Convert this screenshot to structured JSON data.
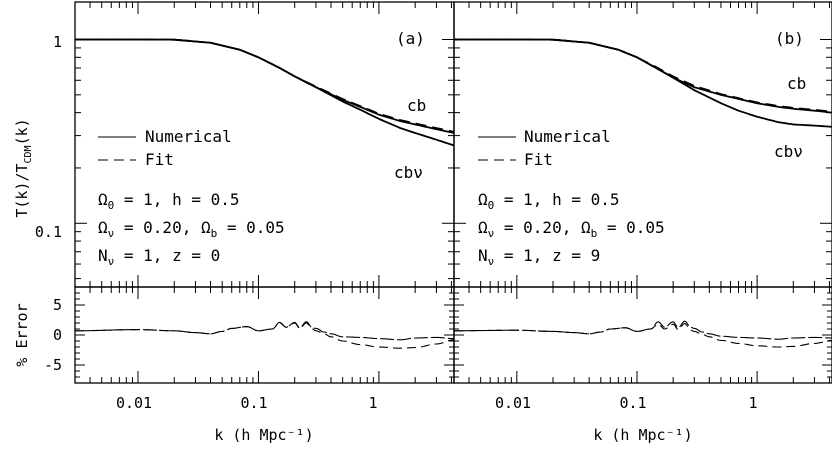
{
  "chart_data": [
    {
      "type": "line",
      "panel_label": "(a)",
      "xlabel": "k (h Mpc⁻¹)",
      "ylabel": "T(k)/T_CDM(k)",
      "y_axis_label_main": "T(k)/T",
      "y_axis_label_sub": "CDM",
      "y_axis_label_tail": "(k)",
      "xscale": "log",
      "yscale": "log",
      "xlim": [
        0.003,
        4.2
      ],
      "ylim": [
        0.045,
        1.6
      ],
      "xticklabels": [
        "0.01",
        "0.1",
        "1"
      ],
      "yticklabels": [
        "0.1",
        "1"
      ],
      "legend": {
        "placement": "center-left",
        "entries": [
          "Numerical",
          "Fit"
        ]
      },
      "curve_labels": [
        "cb",
        "cbν"
      ],
      "params": {
        "line1": {
          "sym": "Ω",
          "sub": "0",
          "text": " = 1, h = 0.5"
        },
        "line2": {
          "sym": "Ω",
          "sub": "ν",
          "mid": " = 0.20, ",
          "sym2": "Ω",
          "sub2": "b",
          "text": " = 0.05"
        },
        "line3": {
          "sym": "N",
          "sub": "ν",
          "text": " = 1, z = 0"
        }
      },
      "series": [
        {
          "name": "Numerical",
          "curve": "cb",
          "x": [
            0.003,
            0.01,
            0.02,
            0.04,
            0.07,
            0.1,
            0.15,
            0.2,
            0.3,
            0.5,
            0.7,
            1.0,
            1.5,
            2.0,
            3.0,
            4.2
          ],
          "y": [
            1.0,
            1.0,
            0.998,
            0.96,
            0.88,
            0.8,
            0.7,
            0.63,
            0.55,
            0.47,
            0.43,
            0.39,
            0.36,
            0.345,
            0.325,
            0.31
          ]
        },
        {
          "name": "Fit",
          "curve": "cb",
          "x": [
            0.003,
            0.01,
            0.02,
            0.04,
            0.07,
            0.1,
            0.15,
            0.2,
            0.3,
            0.5,
            0.7,
            1.0,
            1.5,
            2.0,
            3.0,
            4.2
          ],
          "y": [
            1.0,
            1.0,
            0.998,
            0.96,
            0.88,
            0.8,
            0.7,
            0.63,
            0.555,
            0.475,
            0.435,
            0.395,
            0.365,
            0.35,
            0.33,
            0.315
          ]
        },
        {
          "name": "Numerical",
          "curve": "cbν",
          "x": [
            0.003,
            0.01,
            0.02,
            0.04,
            0.07,
            0.1,
            0.15,
            0.2,
            0.3,
            0.5,
            0.7,
            1.0,
            1.5,
            2.0,
            3.0,
            4.2
          ],
          "y": [
            1.0,
            1.0,
            0.998,
            0.96,
            0.88,
            0.8,
            0.7,
            0.63,
            0.55,
            0.46,
            0.415,
            0.37,
            0.33,
            0.31,
            0.285,
            0.265
          ]
        }
      ],
      "error": {
        "ylabel": "% Error",
        "ylim": [
          -8,
          8
        ],
        "yticklabels": [
          "-5",
          "0",
          "5"
        ],
        "series": [
          {
            "name": "cb",
            "x": [
              0.003,
              0.01,
              0.02,
              0.03,
              0.04,
              0.05,
              0.06,
              0.08,
              0.1,
              0.13,
              0.15,
              0.17,
              0.2,
              0.22,
              0.25,
              0.28,
              0.3,
              0.35,
              0.4,
              0.5,
              0.7,
              1.0,
              1.5,
              2.0,
              3.0,
              4.2
            ],
            "y": [
              0.7,
              0.9,
              0.7,
              0.4,
              0.2,
              0.6,
              1.1,
              1.4,
              0.7,
              1.0,
              2.1,
              1.3,
              2.1,
              1.2,
              2.2,
              1.2,
              1.1,
              0.5,
              0.2,
              -0.3,
              -0.4,
              -0.6,
              -0.8,
              -0.5,
              -0.4,
              -0.6
            ]
          },
          {
            "name": "cbν",
            "x": [
              0.003,
              0.01,
              0.02,
              0.03,
              0.04,
              0.05,
              0.06,
              0.08,
              0.1,
              0.13,
              0.15,
              0.17,
              0.2,
              0.22,
              0.25,
              0.28,
              0.3,
              0.35,
              0.4,
              0.5,
              0.7,
              1.0,
              1.5,
              2.0,
              3.0,
              4.2
            ],
            "y": [
              0.7,
              0.9,
              0.7,
              0.4,
              0.2,
              0.6,
              1.1,
              1.4,
              0.7,
              1.0,
              2.0,
              1.3,
              2.0,
              1.1,
              2.0,
              1.0,
              0.7,
              0.2,
              -0.3,
              -1.0,
              -1.6,
              -2.0,
              -2.2,
              -2.1,
              -1.5,
              -0.8
            ]
          }
        ]
      }
    },
    {
      "type": "line",
      "panel_label": "(b)",
      "xlabel": "k (h Mpc⁻¹)",
      "xscale": "log",
      "yscale": "log",
      "xlim": [
        0.003,
        4.2
      ],
      "ylim": [
        0.045,
        1.6
      ],
      "xticklabels": [
        "0.01",
        "0.1",
        "1"
      ],
      "legend": {
        "placement": "center-left",
        "entries": [
          "Numerical",
          "Fit"
        ]
      },
      "curve_labels": [
        "cb",
        "cbν"
      ],
      "params": {
        "line1": {
          "sym": "Ω",
          "sub": "0",
          "text": " = 1, h = 0.5"
        },
        "line2": {
          "sym": "Ω",
          "sub": "ν",
          "mid": " = 0.20, ",
          "sym2": "Ω",
          "sub2": "b",
          "text": " = 0.05"
        },
        "line3": {
          "sym": "N",
          "sub": "ν",
          "text": " = 1, z = 9"
        }
      },
      "series": [
        {
          "name": "Numerical",
          "curve": "cb",
          "x": [
            0.003,
            0.01,
            0.02,
            0.04,
            0.07,
            0.1,
            0.15,
            0.2,
            0.3,
            0.5,
            0.7,
            1.0,
            1.5,
            2.0,
            3.0,
            4.2
          ],
          "y": [
            1.0,
            1.0,
            0.998,
            0.96,
            0.88,
            0.8,
            0.69,
            0.62,
            0.55,
            0.5,
            0.475,
            0.45,
            0.43,
            0.42,
            0.41,
            0.4
          ]
        },
        {
          "name": "Fit",
          "curve": "cb",
          "x": [
            0.003,
            0.01,
            0.02,
            0.04,
            0.07,
            0.1,
            0.15,
            0.2,
            0.3,
            0.5,
            0.7,
            1.0,
            1.5,
            2.0,
            3.0,
            4.2
          ],
          "y": [
            1.0,
            1.0,
            0.998,
            0.96,
            0.88,
            0.8,
            0.7,
            0.63,
            0.56,
            0.505,
            0.48,
            0.455,
            0.435,
            0.425,
            0.415,
            0.405
          ]
        },
        {
          "name": "Numerical",
          "curve": "cbν",
          "x": [
            0.003,
            0.01,
            0.02,
            0.04,
            0.07,
            0.1,
            0.15,
            0.2,
            0.3,
            0.5,
            0.7,
            1.0,
            1.5,
            2.0,
            3.0,
            4.2
          ],
          "y": [
            1.0,
            1.0,
            0.998,
            0.96,
            0.88,
            0.8,
            0.69,
            0.62,
            0.53,
            0.45,
            0.41,
            0.38,
            0.355,
            0.345,
            0.34,
            0.335
          ]
        }
      ],
      "error": {
        "ylim": [
          -8,
          8
        ],
        "series": [
          {
            "name": "cb",
            "x": [
              0.003,
              0.01,
              0.02,
              0.03,
              0.04,
              0.05,
              0.06,
              0.08,
              0.1,
              0.13,
              0.15,
              0.17,
              0.2,
              0.22,
              0.25,
              0.28,
              0.3,
              0.35,
              0.4,
              0.5,
              0.7,
              1.0,
              1.5,
              2.0,
              3.0,
              4.2
            ],
            "y": [
              0.7,
              0.8,
              0.6,
              0.4,
              0.2,
              0.5,
              1.0,
              1.2,
              0.6,
              1.0,
              2.2,
              1.3,
              2.2,
              1.2,
              2.3,
              1.3,
              1.1,
              0.5,
              0.2,
              -0.2,
              -0.4,
              -0.5,
              -0.7,
              -0.5,
              -0.4,
              -0.5
            ]
          },
          {
            "name": "cbν",
            "x": [
              0.003,
              0.01,
              0.02,
              0.03,
              0.04,
              0.05,
              0.06,
              0.08,
              0.1,
              0.13,
              0.15,
              0.17,
              0.2,
              0.22,
              0.25,
              0.28,
              0.3,
              0.35,
              0.4,
              0.5,
              0.7,
              1.0,
              1.5,
              2.0,
              3.0,
              4.2
            ],
            "y": [
              0.7,
              0.8,
              0.6,
              0.4,
              0.2,
              0.5,
              1.0,
              1.2,
              0.6,
              1.0,
              1.8,
              1.0,
              1.8,
              0.9,
              1.9,
              0.8,
              0.6,
              0.1,
              -0.3,
              -0.9,
              -1.4,
              -1.8,
              -2.0,
              -1.9,
              -1.4,
              -0.9
            ]
          }
        ]
      }
    }
  ]
}
